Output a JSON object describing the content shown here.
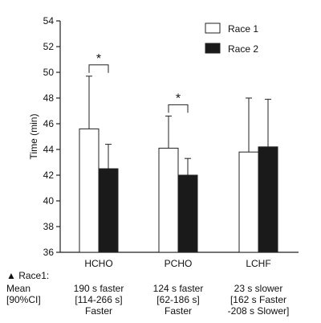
{
  "chart_data": {
    "type": "bar",
    "categories": [
      "HCHO",
      "PCHO",
      "LCHF"
    ],
    "series": [
      {
        "name": "Race 1",
        "values": [
          45.6,
          44.1,
          43.8
        ],
        "error_upper": [
          49.7,
          46.6,
          48.0
        ],
        "fill": "#ffffff"
      },
      {
        "name": "Race 2",
        "values": [
          42.5,
          42.0,
          44.2
        ],
        "error_upper": [
          44.4,
          43.3,
          47.9
        ],
        "fill": "#1a1a1a"
      }
    ],
    "ylabel": "Time (min)",
    "ylim": [
      36,
      54
    ],
    "yticks": [
      36,
      38,
      40,
      42,
      44,
      46,
      48,
      50,
      52,
      54
    ],
    "grid": false,
    "legend_position": "top-right",
    "significance": [
      {
        "category": "HCHO",
        "label": "*"
      },
      {
        "category": "PCHO",
        "label": "*"
      }
    ]
  },
  "annotation": {
    "header": "▲ Race1:",
    "row_labels": [
      "Mean",
      "[90%CI]"
    ],
    "columns": [
      {
        "lines": [
          "190 s faster",
          "[114-266 s]",
          "Faster"
        ]
      },
      {
        "lines": [
          "124 s faster",
          "[62-186 s]",
          "Faster"
        ]
      },
      {
        "lines": [
          "23 s slower",
          "[162 s Faster",
          "-208 s Slower]"
        ]
      }
    ]
  }
}
